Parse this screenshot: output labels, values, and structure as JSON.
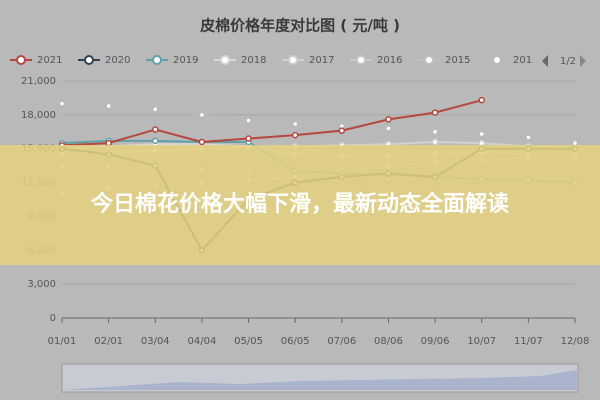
{
  "chart_data": {
    "type": "line",
    "title": "皮棉价格年度对比图 ( 元/吨 )",
    "legend_page": "1/2",
    "categories": [
      "01/01",
      "02/01",
      "03/04",
      "04/04",
      "05/05",
      "06/05",
      "07/06",
      "08/06",
      "09/06",
      "10/07",
      "11/07",
      "12/08"
    ],
    "series": [
      {
        "name": "2021",
        "color": "#b5473e",
        "values": [
          15300,
          15500,
          16700,
          15600,
          15900,
          16200,
          16600,
          17600,
          18200,
          19300,
          null,
          null
        ]
      },
      {
        "name": "2020",
        "color": "#2f4554",
        "values": [
          15000,
          14500,
          13500,
          6000,
          10500,
          12000,
          12500,
          12800,
          12500,
          15000,
          15000,
          15000
        ]
      },
      {
        "name": "2019",
        "color": "#61a0a8",
        "values": [
          15500,
          15700,
          15700,
          15600,
          15600,
          13000,
          12800,
          12700,
          12500,
          12300,
          12200,
          12000
        ]
      },
      {
        "name": "2018",
        "color": "#d8d8d8",
        "values": [
          15000,
          15200,
          15400,
          15400,
          15200,
          14500,
          14400,
          14400,
          14500,
          14600,
          14500,
          14500
        ]
      },
      {
        "name": "2017",
        "color": "#d0d0d0",
        "values": [
          14500,
          14700,
          14800,
          15000,
          15100,
          15200,
          15300,
          15400,
          15600,
          15500,
          15200,
          15000
        ]
      },
      {
        "name": "2016",
        "color": "#c8c8c8",
        "values": [
          11000,
          11500,
          11800,
          12000,
          12200,
          12500,
          13000,
          13500,
          13800,
          14000,
          14200,
          14300
        ]
      },
      {
        "name": "2015",
        "color": "#c0c0c0",
        "values": [
          13500,
          13400,
          13300,
          13200,
          13000,
          12800,
          12700,
          12500,
          12400,
          12300,
          12200,
          12100
        ]
      },
      {
        "name": "201",
        "color": "#b8b8b8",
        "values": [
          19000,
          18800,
          18500,
          18000,
          17500,
          17200,
          17000,
          16800,
          16500,
          16300,
          16000,
          15500
        ]
      }
    ],
    "ylim": [
      0,
      21000
    ],
    "yticks": [
      0,
      {
        "value": 3000,
        "label": "3,000"
      },
      {
        "value": 6000,
        "label": "6,000"
      },
      {
        "value": 9000,
        "label": "9,000"
      },
      {
        "value": 12000,
        "label": "12,000"
      },
      {
        "value": 15000,
        "label": "15,000"
      },
      {
        "value": 18000,
        "label": "18,000"
      },
      {
        "value": 21000,
        "label": "21,000"
      }
    ],
    "grid": true
  },
  "banner": {
    "text": "今日棉花价格大幅下滑，最新动态全面解读"
  }
}
